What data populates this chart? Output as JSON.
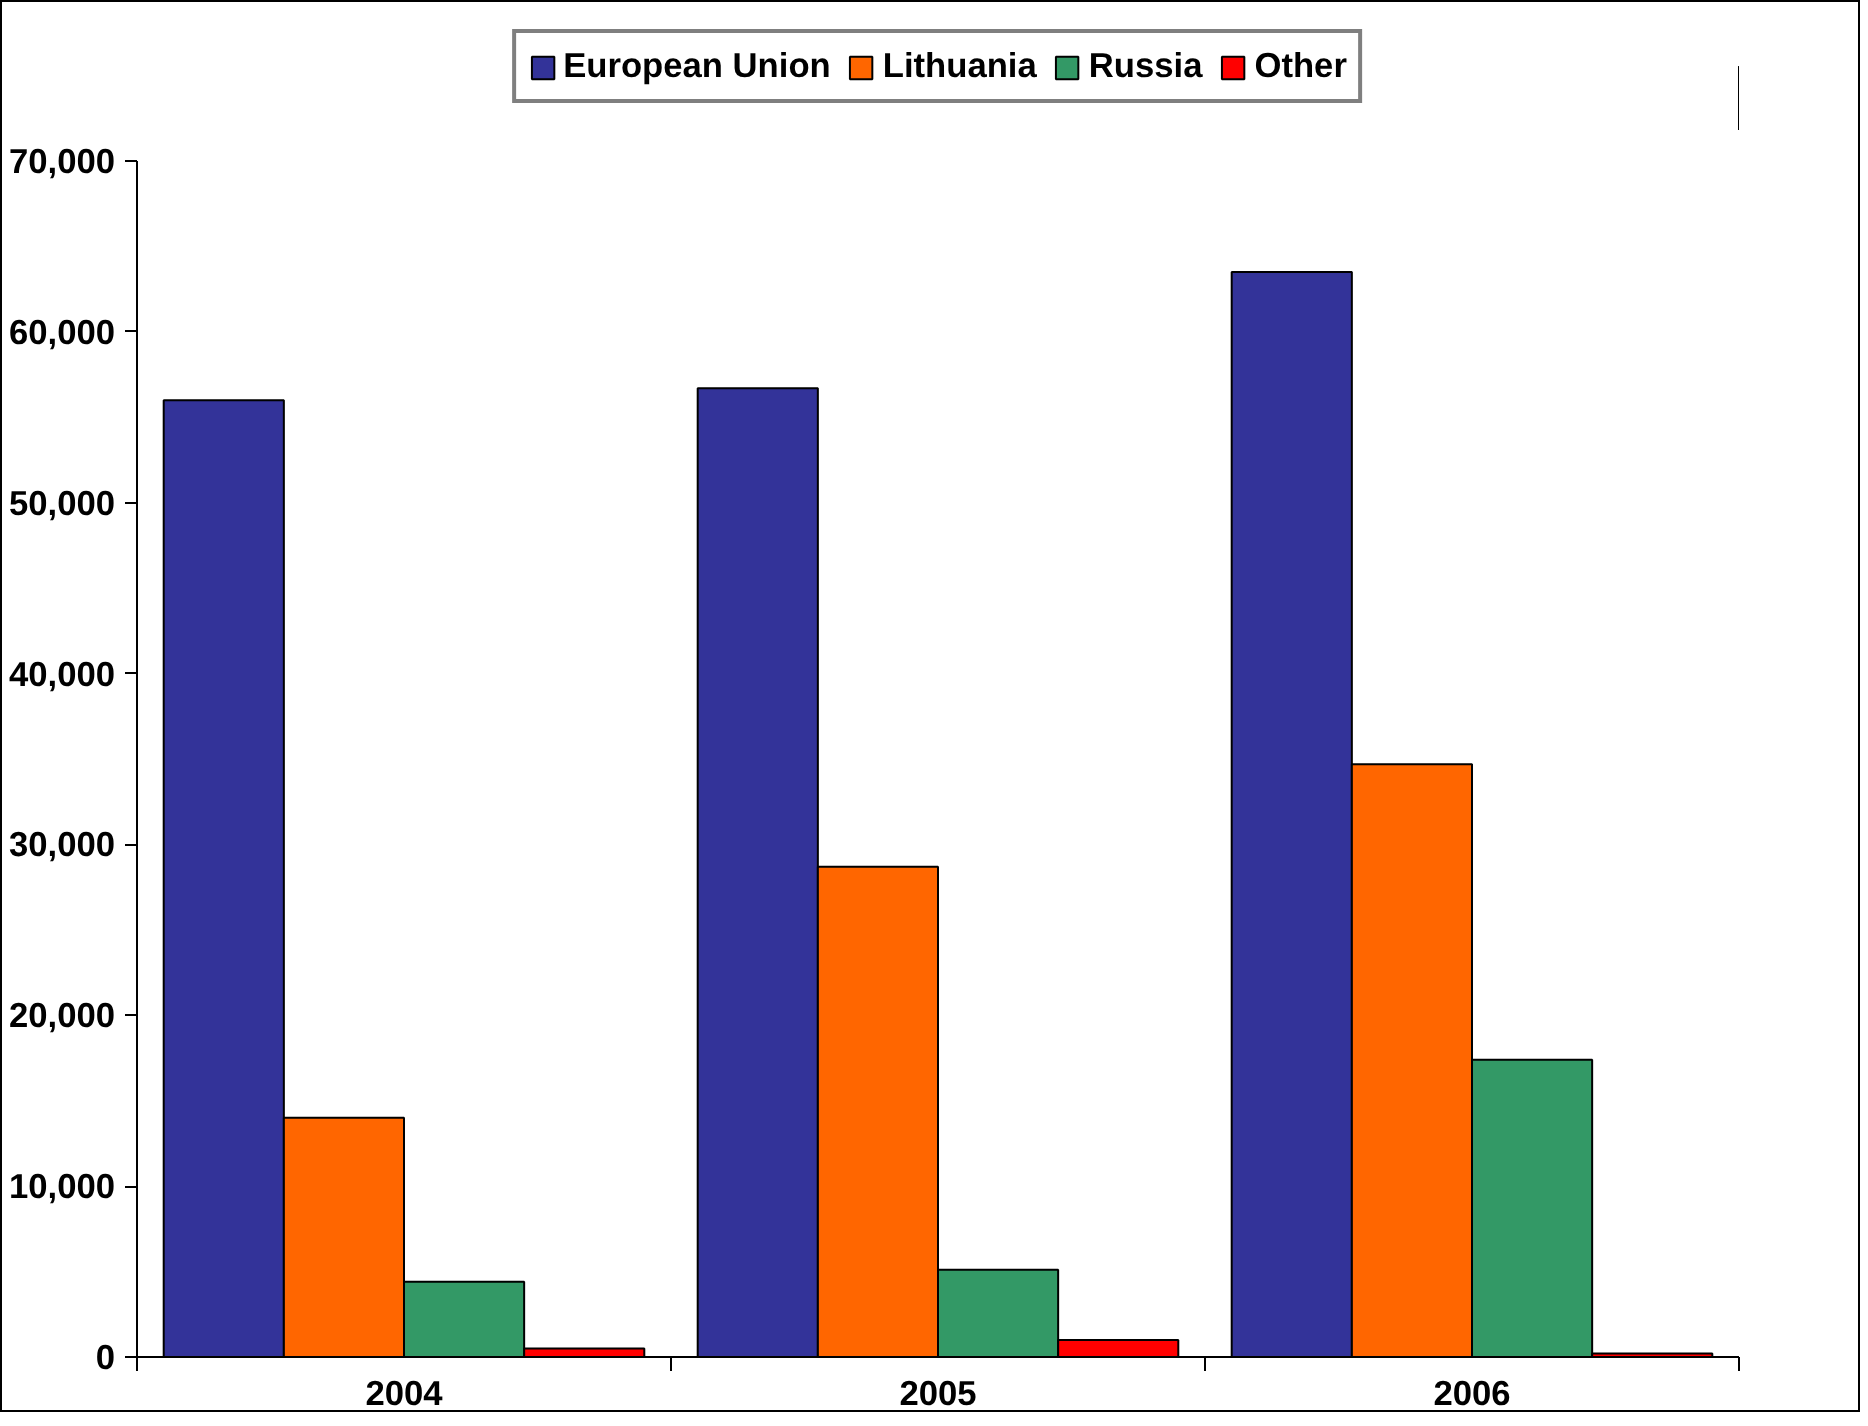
{
  "chart_data": {
    "type": "bar",
    "categories": [
      "2004",
      "2005",
      "2006"
    ],
    "series": [
      {
        "name": "European Union",
        "color": "#333399",
        "values": [
          56000,
          56700,
          63500
        ]
      },
      {
        "name": "Lithuania",
        "color": "#ff6600",
        "values": [
          14000,
          28700,
          34700
        ]
      },
      {
        "name": "Russia",
        "color": "#339966",
        "values": [
          4400,
          5100,
          17400
        ]
      },
      {
        "name": "Other",
        "color": "#ff0000",
        "values": [
          500,
          1000,
          200
        ]
      }
    ],
    "ylim": [
      0,
      70000
    ],
    "yticks": [
      {
        "value": 0,
        "label": "0"
      },
      {
        "value": 10000,
        "label": "10,000"
      },
      {
        "value": 20000,
        "label": "20,000"
      },
      {
        "value": 30000,
        "label": "30,000"
      },
      {
        "value": 40000,
        "label": "40,000"
      },
      {
        "value": 50000,
        "label": "50,000"
      },
      {
        "value": 60000,
        "label": "60,000"
      },
      {
        "value": 70000,
        "label": "70,000"
      }
    ],
    "grid": false,
    "legend": "top"
  }
}
